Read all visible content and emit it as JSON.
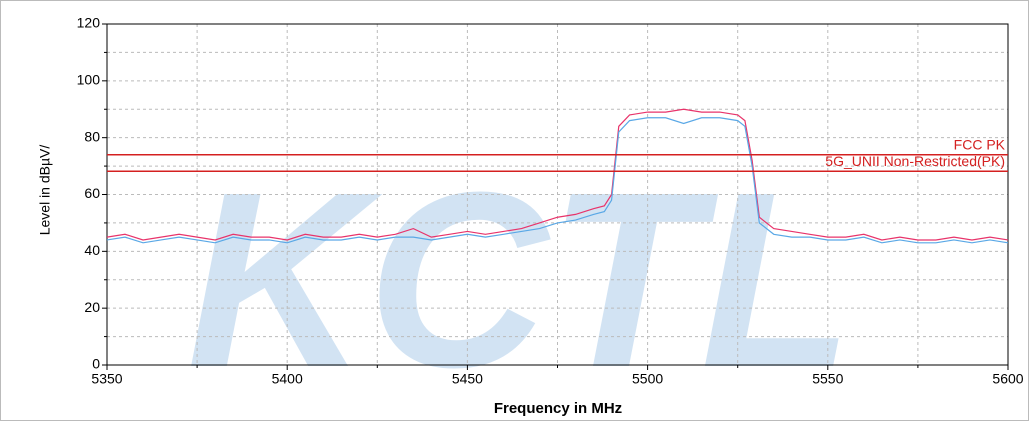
{
  "chart_data": {
    "type": "line",
    "xlabel": "Frequency in MHz",
    "ylabel": "Level in dBµV/",
    "watermark": "KCTL",
    "x": [
      5350,
      5355,
      5360,
      5365,
      5370,
      5375,
      5380,
      5385,
      5390,
      5395,
      5400,
      5405,
      5410,
      5415,
      5420,
      5425,
      5430,
      5435,
      5440,
      5445,
      5450,
      5455,
      5460,
      5465,
      5470,
      5475,
      5480,
      5485,
      5488,
      5490,
      5492,
      5495,
      5500,
      5505,
      5510,
      5515,
      5520,
      5525,
      5527,
      5529,
      5531,
      5535,
      5540,
      5545,
      5550,
      5555,
      5560,
      5565,
      5570,
      5575,
      5580,
      5585,
      5590,
      5595,
      5600
    ],
    "series": [
      {
        "color": "#e8336a",
        "values": [
          45,
          46,
          44,
          45,
          46,
          45,
          44,
          46,
          45,
          45,
          44,
          46,
          45,
          45,
          46,
          45,
          46,
          48,
          45,
          46,
          47,
          46,
          47,
          48,
          50,
          52,
          53,
          55,
          56,
          60,
          84,
          88,
          89,
          89,
          90,
          89,
          89,
          88,
          86,
          72,
          52,
          48,
          47,
          46,
          45,
          45,
          46,
          44,
          45,
          44,
          44,
          45,
          44,
          45,
          44
        ]
      },
      {
        "color": "#5aa8e6",
        "values": [
          44,
          45,
          43,
          44,
          45,
          44,
          43,
          45,
          44,
          44,
          43,
          45,
          44,
          44,
          45,
          44,
          45,
          45,
          44,
          45,
          46,
          45,
          46,
          47,
          48,
          50,
          51,
          53,
          54,
          58,
          82,
          86,
          87,
          87,
          85,
          87,
          87,
          86,
          84,
          70,
          50,
          46,
          45,
          45,
          44,
          44,
          45,
          43,
          44,
          43,
          43,
          44,
          43,
          44,
          43
        ]
      }
    ],
    "limit_lines": [
      {
        "name": "FCC PK",
        "value": 74,
        "color": "#d42020"
      },
      {
        "name": "5G_UNII Non-Restricted(PK)",
        "value": 68.2,
        "color": "#d42020"
      }
    ],
    "xlim": [
      5350,
      5600
    ],
    "xticks": [
      5350,
      5400,
      5450,
      5500,
      5550,
      5600
    ],
    "xminor": [
      5375,
      5425,
      5475,
      5525,
      5575
    ],
    "ylim": [
      0,
      120
    ],
    "yticks": [
      0,
      20,
      40,
      60,
      80,
      100,
      120
    ],
    "yminor": [
      10,
      30,
      50,
      70,
      90,
      110
    ],
    "grid": true
  }
}
